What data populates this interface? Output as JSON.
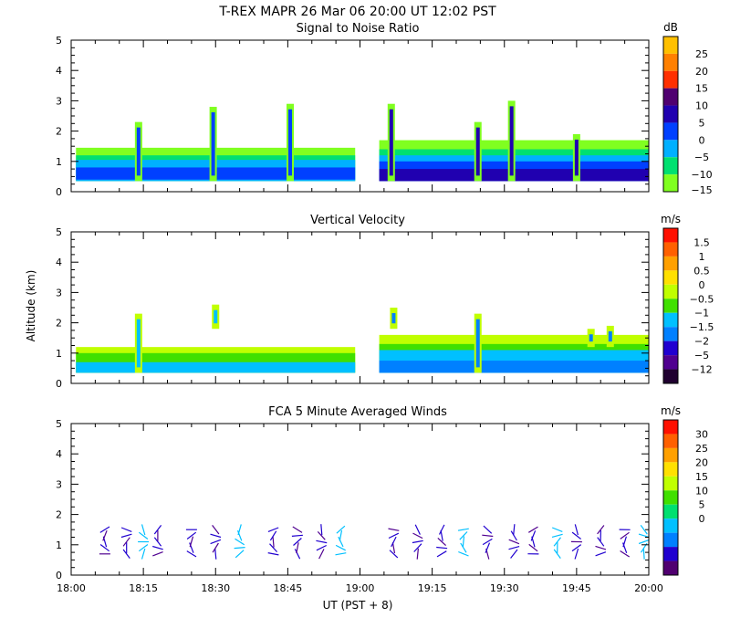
{
  "title": "T-REX   MAPR 26 Mar 06   20:00 UT   12:02   PST",
  "x_axis": {
    "label": "UT  (PST + 8)",
    "ticks": [
      "18:00",
      "18:15",
      "18:30",
      "18:45",
      "19:00",
      "19:15",
      "19:30",
      "19:45",
      "20:00"
    ],
    "range_minutes": [
      0,
      120
    ]
  },
  "y_axis_label": "Altitude (km)",
  "chart_data": [
    {
      "type": "heatmap",
      "title": "Signal to Noise Ratio",
      "ylabel": "Altitude (km)",
      "ylim": [
        0,
        5
      ],
      "yticks": [
        "0",
        "1",
        "2",
        "3",
        "4",
        "5"
      ],
      "colorbar": {
        "unit": "dB",
        "labels": [
          "25",
          "20",
          "15",
          "10",
          "5",
          "0",
          "−5",
          "−10",
          "−15"
        ],
        "colors": [
          "#ffc000",
          "#ff8000",
          "#ff3000",
          "#500070",
          "#2000b0",
          "#0040ff",
          "#00b0ff",
          "#00e070",
          "#80ff20"
        ]
      },
      "segments": [
        {
          "x": [
            1,
            59
          ],
          "layers": [
            {
              "y": [
                0.35,
                1.45
              ],
              "color": "#80ff20"
            },
            {
              "y": [
                0.35,
                1.2
              ],
              "color": "#00e070"
            },
            {
              "y": [
                0.35,
                1.05
              ],
              "color": "#00b0ff"
            },
            {
              "y": [
                0.4,
                0.8
              ],
              "color": "#0040ff"
            }
          ],
          "plumes": [
            [
              14,
              0.35,
              2.3
            ],
            [
              29.5,
              0.35,
              2.8
            ],
            [
              45.5,
              0.35,
              2.9
            ]
          ]
        },
        {
          "x": [
            64,
            120
          ],
          "layers": [
            {
              "y": [
                0.35,
                1.7
              ],
              "color": "#80ff20"
            },
            {
              "y": [
                0.35,
                1.4
              ],
              "color": "#00e070"
            },
            {
              "y": [
                0.35,
                1.2
              ],
              "color": "#00b0ff"
            },
            {
              "y": [
                0.35,
                1.0
              ],
              "color": "#0040ff"
            },
            {
              "y": [
                0.35,
                0.75
              ],
              "color": "#2000b0"
            }
          ],
          "plumes": [
            [
              66.5,
              0.35,
              2.9
            ],
            [
              84.5,
              0.35,
              2.3
            ],
            [
              91.5,
              0.35,
              3.0
            ],
            [
              105,
              0.35,
              1.9
            ]
          ]
        }
      ]
    },
    {
      "type": "heatmap",
      "title": "Vertical Velocity",
      "ylabel": "Altitude (km)",
      "ylim": [
        0,
        5
      ],
      "yticks": [
        "0",
        "1",
        "2",
        "3",
        "4",
        "5"
      ],
      "colorbar": {
        "unit": "m/s",
        "labels": [
          "1.5",
          "1",
          "0.5",
          "0",
          "−0.5",
          "−1",
          "−1.5",
          "−2",
          "−5",
          "−12"
        ],
        "colors": [
          "#ff1000",
          "#ff6000",
          "#ffa000",
          "#ffe000",
          "#c0ff00",
          "#40e000",
          "#00c0ff",
          "#0080ff",
          "#2000d0",
          "#500090",
          "#200030"
        ]
      },
      "segments": [
        {
          "x": [
            1,
            59
          ],
          "layers": [
            {
              "y": [
                0.35,
                1.2
              ],
              "color": "#c0ff00"
            },
            {
              "y": [
                0.35,
                1.0
              ],
              "color": "#40e000"
            },
            {
              "y": [
                0.35,
                0.7
              ],
              "color": "#00c0ff"
            }
          ],
          "plumes": [
            [
              14,
              0.35,
              2.3
            ],
            [
              30,
              1.8,
              2.6
            ]
          ]
        },
        {
          "x": [
            64,
            120
          ],
          "layers": [
            {
              "y": [
                0.35,
                1.6
              ],
              "color": "#c0ff00"
            },
            {
              "y": [
                0.35,
                1.3
              ],
              "color": "#40e000"
            },
            {
              "y": [
                0.35,
                1.1
              ],
              "color": "#00c0ff"
            },
            {
              "y": [
                0.35,
                0.75
              ],
              "color": "#0080ff"
            }
          ],
          "plumes": [
            [
              67,
              1.8,
              2.5
            ],
            [
              84.5,
              0.35,
              2.3
            ],
            [
              108,
              1.2,
              1.8
            ],
            [
              112,
              1.2,
              1.9
            ]
          ]
        }
      ]
    },
    {
      "type": "scatter",
      "title": "FCA 5 Minute Averaged Winds",
      "ylabel": "Altitude (km)",
      "ylim": [
        0,
        5
      ],
      "yticks": [
        "0",
        "1",
        "2",
        "3",
        "4",
        "5"
      ],
      "colorbar": {
        "unit": "m/s",
        "labels": [
          "30",
          "25",
          "20",
          "15",
          "10",
          "5",
          "0"
        ],
        "colors": [
          "#ff1000",
          "#ff6000",
          "#ffa000",
          "#ffe000",
          "#c0ff00",
          "#40e000",
          "#00e070",
          "#00c0ff",
          "#0080ff",
          "#2000d0",
          "#500070"
        ]
      },
      "barb_times": [
        7,
        11.5,
        15,
        18,
        25,
        30,
        35,
        42,
        47,
        52,
        56,
        67,
        72,
        77,
        81.5,
        86.5,
        92,
        96,
        101,
        105,
        110,
        115,
        119
      ],
      "barb_altitudes": [
        0.7,
        0.9,
        1.1,
        1.3,
        1.5
      ]
    }
  ]
}
